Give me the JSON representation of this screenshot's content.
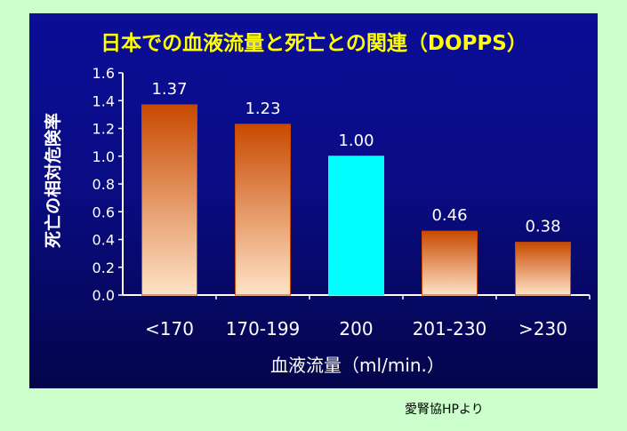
{
  "source_note": "愛腎協HPより",
  "colors": {
    "background": "#ccffcc",
    "title": "#ffff00",
    "text": "#ffffff",
    "bar_top": "#c84a00",
    "bar_bottom": "#ffe3c8",
    "reference_bar": "#00ffff"
  },
  "chart_data": {
    "type": "bar",
    "title": "日本での血液流量と死亡との関連（DOPPS）",
    "xlabel": "血液流量（ml/min.）",
    "ylabel": "死亡の相対危険率",
    "categories": [
      "<170",
      "170-199",
      "200",
      "201-230",
      ">230"
    ],
    "values": [
      1.37,
      1.23,
      1.0,
      0.46,
      0.38
    ],
    "value_labels": [
      "1.37",
      "1.23",
      "1.00",
      "0.46",
      "0.38"
    ],
    "reference_category": "200",
    "ylim": [
      0,
      1.6
    ],
    "yticks": [
      "0.0",
      "0.2",
      "0.4",
      "0.6",
      "0.8",
      "1.0",
      "1.2",
      "1.4",
      "1.6"
    ],
    "grid": false,
    "legend": "none"
  }
}
